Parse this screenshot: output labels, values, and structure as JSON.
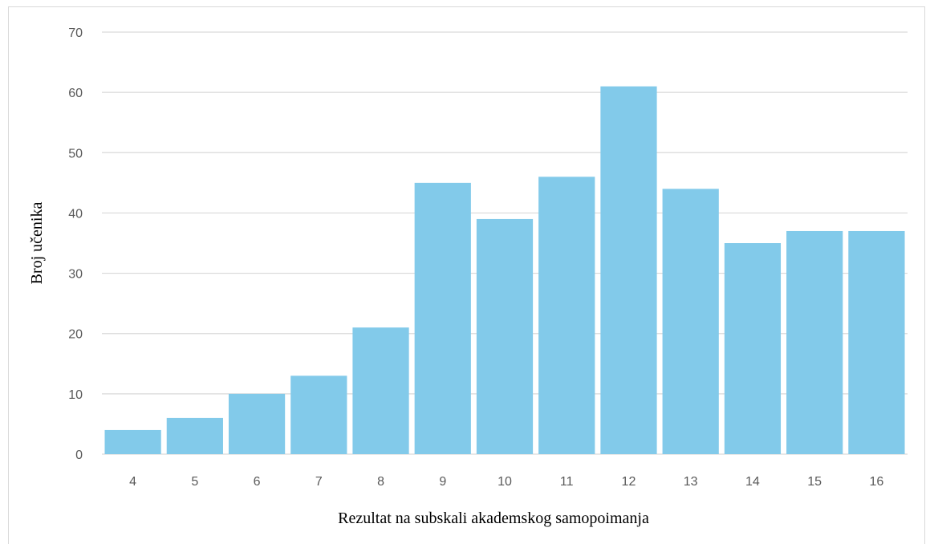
{
  "chart_data": {
    "type": "bar",
    "title": "",
    "xlabel": "Rezultat na subskali akademskog samopoimanja",
    "ylabel": "Broj učenika",
    "categories": [
      "4",
      "5",
      "6",
      "7",
      "8",
      "9",
      "10",
      "11",
      "12",
      "13",
      "14",
      "15",
      "16"
    ],
    "values": [
      4,
      6,
      10,
      13,
      21,
      45,
      39,
      46,
      61,
      44,
      35,
      37,
      37
    ],
    "ylim": [
      0,
      70
    ],
    "yticks": [
      0,
      10,
      20,
      30,
      40,
      50,
      60,
      70
    ],
    "grid": true,
    "legend": "none",
    "colors": {
      "bar": "#82CAEA",
      "grid": "#D9D9D9",
      "tick_text": "#595959"
    }
  }
}
